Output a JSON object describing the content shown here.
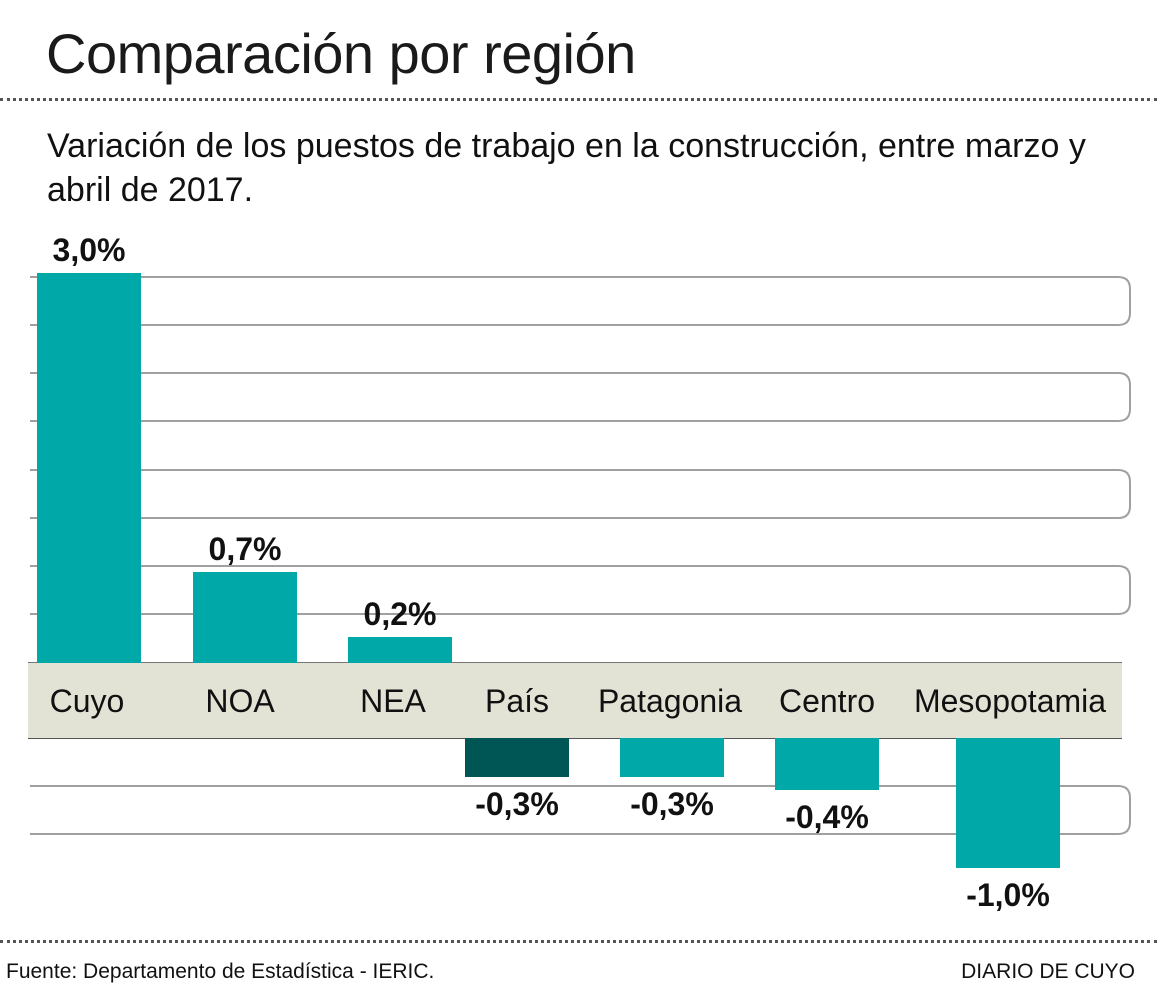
{
  "header": {
    "title": "Comparación por región",
    "subtitle": "Variación de los puestos de trabajo en la construcción, entre marzo y abril de 2017."
  },
  "footer": {
    "source": "Fuente: Departamento de Estadística - IERIC.",
    "brand": "DIARIO DE CUYO"
  },
  "colors": {
    "bar": "#00a8a8",
    "highlight_bar": "#005654",
    "label_band": "#e3e3d5",
    "gridline": "#a0a0a0"
  },
  "chart_data": {
    "type": "bar",
    "title": "Comparación por región",
    "subtitle": "Variación de los puestos de trabajo en la construcción, entre marzo y abril de 2017.",
    "xlabel": "",
    "ylabel": "",
    "ylim": [
      -1.0,
      3.0
    ],
    "grid": true,
    "legend": "none",
    "categories": [
      "Cuyo",
      "NOA",
      "NEA",
      "País",
      "Patagonia",
      "Centro",
      "Mesopotamia"
    ],
    "values": [
      3.0,
      0.7,
      0.2,
      -0.3,
      -0.3,
      -0.4,
      -1.0
    ],
    "data_labels": [
      "3,0%",
      "0,7%",
      "0,2%",
      "-0,3%",
      "-0,3%",
      "-0,4%",
      "-1,0%"
    ],
    "highlight": "País",
    "unit": "%"
  }
}
